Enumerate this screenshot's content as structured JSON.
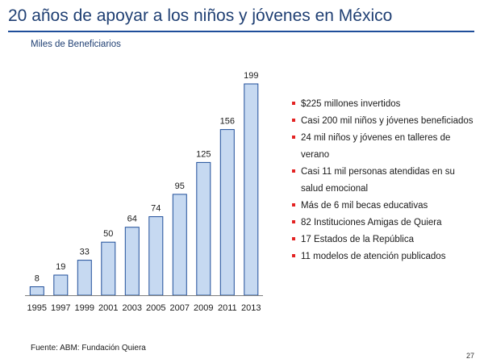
{
  "slide": {
    "title": "20 años de apoyar a los niños y jóvenes en México",
    "source": "Fuente: ABM: Fundación Quiera",
    "page_number": "27",
    "accent_color": "#1f4e9a",
    "bullet_color": "#e32222"
  },
  "bullets": [
    "$225 millones invertidos",
    "Casi 200 mil niños y jóvenes beneficiados",
    "24 mil niños y jóvenes en talleres de verano",
    "Casi 11 mil personas atendidas en su salud emocional",
    "Más de 6 mil becas educativas",
    "82 Instituciones Amigas de Quiera",
    "17 Estados de la República",
    "11 modelos de atención publicados"
  ],
  "chart_data": {
    "type": "bar",
    "title": "",
    "subtitle": "Miles de Beneficiarios",
    "xlabel": "",
    "ylabel": "",
    "categories": [
      "1995",
      "1997",
      "1999",
      "2001",
      "2003",
      "2005",
      "2007",
      "2009",
      "2011",
      "2013"
    ],
    "values": [
      8,
      19,
      33,
      50,
      64,
      74,
      95,
      125,
      156,
      199
    ],
    "ylim": [
      0,
      199
    ],
    "grid": false,
    "legend": "none",
    "bar_fill": "#c6d9f1",
    "bar_stroke": "#1f4e9a",
    "data_labels": true
  }
}
